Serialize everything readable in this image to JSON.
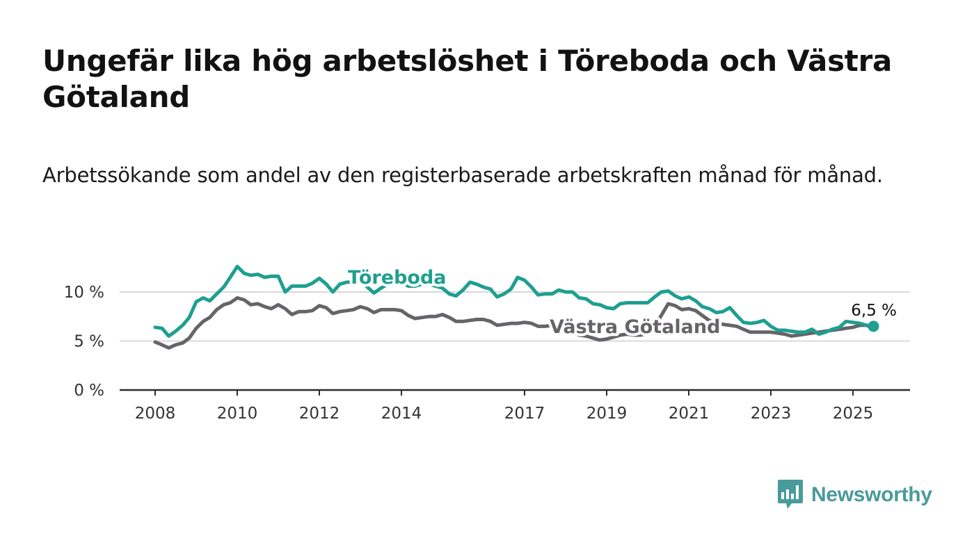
{
  "header": {
    "title": "Ungefär lika hög arbetslöshet i Töreboda och Västra Götaland",
    "subtitle": "Arbetssökande som andel av den registerbaserade arbetskraften månad för månad."
  },
  "brand": {
    "name": "Newsworthy",
    "color": "#4a9a9b",
    "icon": "bar-chart-speech-bubble-icon"
  },
  "chart_data": {
    "type": "line",
    "xlabel": "",
    "ylabel": "",
    "ylim": [
      0,
      13
    ],
    "xlim": [
      2008,
      2026.4
    ],
    "y_ticks": [
      {
        "value": 0,
        "label": "0 %"
      },
      {
        "value": 5,
        "label": "5 %"
      },
      {
        "value": 10,
        "label": "10 %"
      }
    ],
    "x_ticks": [
      {
        "value": 2008,
        "label": "2008"
      },
      {
        "value": 2010,
        "label": "2010"
      },
      {
        "value": 2012,
        "label": "2012"
      },
      {
        "value": 2014,
        "label": "2014"
      },
      {
        "value": 2017,
        "label": "2017"
      },
      {
        "value": 2019,
        "label": "2019"
      },
      {
        "value": 2021,
        "label": "2021"
      },
      {
        "value": 2023,
        "label": "2023"
      },
      {
        "value": 2025,
        "label": "2025"
      }
    ],
    "grid": true,
    "series": [
      {
        "name": "Västra Götaland",
        "color": "#666468",
        "x": [
          2008.0,
          2008.17,
          2008.33,
          2008.5,
          2008.67,
          2008.83,
          2009.0,
          2009.17,
          2009.33,
          2009.5,
          2009.67,
          2009.83,
          2010.0,
          2010.17,
          2010.33,
          2010.5,
          2010.67,
          2010.83,
          2011.0,
          2011.17,
          2011.33,
          2011.5,
          2011.67,
          2011.83,
          2012.0,
          2012.17,
          2012.33,
          2012.5,
          2012.67,
          2012.83,
          2013.0,
          2013.17,
          2013.33,
          2013.5,
          2013.67,
          2013.83,
          2014.0,
          2014.17,
          2014.33,
          2014.5,
          2014.67,
          2014.83,
          2015.0,
          2015.17,
          2015.33,
          2015.5,
          2015.67,
          2015.83,
          2016.0,
          2016.17,
          2016.33,
          2016.5,
          2016.67,
          2016.83,
          2017.0,
          2017.17,
          2017.33,
          2017.5,
          2017.67,
          2017.83,
          2018.0,
          2018.17,
          2018.33,
          2018.5,
          2018.67,
          2018.83,
          2019.0,
          2019.17,
          2019.33,
          2019.5,
          2019.67,
          2019.83,
          2020.0,
          2020.17,
          2020.33,
          2020.5,
          2020.67,
          2020.83,
          2021.0,
          2021.17,
          2021.33,
          2021.5,
          2021.67,
          2021.83,
          2022.0,
          2022.17,
          2022.33,
          2022.5,
          2022.67,
          2022.83,
          2023.0,
          2023.17,
          2023.33,
          2023.5,
          2023.67,
          2023.83,
          2024.0,
          2024.17,
          2024.33,
          2024.5,
          2024.67,
          2024.83,
          2025.0,
          2025.17,
          2025.33,
          2025.5
        ],
        "values": [
          4.9,
          4.6,
          4.3,
          4.6,
          4.8,
          5.3,
          6.3,
          7.0,
          7.4,
          8.2,
          8.7,
          8.9,
          9.4,
          9.2,
          8.7,
          8.8,
          8.5,
          8.3,
          8.7,
          8.3,
          7.7,
          8.0,
          8.0,
          8.1,
          8.6,
          8.4,
          7.8,
          8.0,
          8.1,
          8.2,
          8.5,
          8.3,
          7.9,
          8.2,
          8.2,
          8.2,
          8.1,
          7.6,
          7.3,
          7.4,
          7.5,
          7.5,
          7.7,
          7.4,
          7.0,
          7.0,
          7.1,
          7.2,
          7.2,
          7.0,
          6.6,
          6.7,
          6.8,
          6.8,
          6.9,
          6.8,
          6.5,
          6.5,
          6.6,
          6.4,
          6.2,
          6.0,
          5.6,
          5.5,
          5.3,
          5.1,
          5.2,
          5.4,
          5.6,
          5.7,
          5.6,
          5.6,
          5.8,
          6.5,
          7.6,
          8.8,
          8.6,
          8.2,
          8.3,
          8.1,
          7.6,
          7.1,
          6.8,
          6.7,
          6.6,
          6.5,
          6.2,
          5.9,
          5.9,
          5.9,
          5.9,
          5.8,
          5.7,
          5.5,
          5.6,
          5.7,
          5.8,
          5.9,
          6.0,
          6.1,
          6.2,
          6.3,
          6.4,
          6.6,
          6.6,
          6.3
        ]
      },
      {
        "name": "Töreboda",
        "color": "#1e9f8f",
        "x": [
          2008.0,
          2008.17,
          2008.33,
          2008.5,
          2008.67,
          2008.83,
          2009.0,
          2009.17,
          2009.33,
          2009.5,
          2009.67,
          2009.83,
          2010.0,
          2010.17,
          2010.33,
          2010.5,
          2010.67,
          2010.83,
          2011.0,
          2011.17,
          2011.33,
          2011.5,
          2011.67,
          2011.83,
          2012.0,
          2012.17,
          2012.33,
          2012.5,
          2012.67,
          2012.83,
          2013.0,
          2013.17,
          2013.33,
          2013.5,
          2013.67,
          2013.83,
          2014.0,
          2014.17,
          2014.33,
          2014.5,
          2014.67,
          2014.83,
          2015.0,
          2015.17,
          2015.33,
          2015.5,
          2015.67,
          2015.83,
          2016.0,
          2016.17,
          2016.33,
          2016.5,
          2016.67,
          2016.83,
          2017.0,
          2017.17,
          2017.33,
          2017.5,
          2017.67,
          2017.83,
          2018.0,
          2018.17,
          2018.33,
          2018.5,
          2018.67,
          2018.83,
          2019.0,
          2019.17,
          2019.33,
          2019.5,
          2019.67,
          2019.83,
          2020.0,
          2020.17,
          2020.33,
          2020.5,
          2020.67,
          2020.83,
          2021.0,
          2021.17,
          2021.33,
          2021.5,
          2021.67,
          2021.83,
          2022.0,
          2022.17,
          2022.33,
          2022.5,
          2022.67,
          2022.83,
          2023.0,
          2023.17,
          2023.33,
          2023.5,
          2023.67,
          2023.83,
          2024.0,
          2024.17,
          2024.33,
          2024.5,
          2024.67,
          2024.83,
          2025.0,
          2025.17,
          2025.33,
          2025.5
        ],
        "values": [
          6.4,
          6.3,
          5.5,
          6.0,
          6.6,
          7.4,
          9.0,
          9.4,
          9.1,
          9.8,
          10.5,
          11.5,
          12.6,
          11.9,
          11.7,
          11.8,
          11.5,
          11.6,
          11.6,
          10.0,
          10.6,
          10.6,
          10.6,
          10.9,
          11.4,
          10.8,
          10.0,
          10.8,
          11.0,
          11.0,
          11.2,
          10.5,
          9.9,
          10.4,
          10.8,
          10.8,
          11.0,
          10.6,
          10.6,
          10.8,
          10.8,
          10.6,
          10.4,
          9.8,
          9.6,
          10.2,
          11.0,
          10.8,
          10.5,
          10.3,
          9.5,
          9.8,
          10.3,
          11.5,
          11.2,
          10.5,
          9.7,
          9.8,
          9.8,
          10.2,
          10.0,
          10.0,
          9.4,
          9.3,
          8.8,
          8.7,
          8.4,
          8.3,
          8.8,
          8.9,
          8.9,
          8.9,
          8.9,
          9.5,
          10.0,
          10.1,
          9.6,
          9.3,
          9.5,
          9.1,
          8.5,
          8.3,
          7.9,
          8.0,
          8.4,
          7.6,
          6.9,
          6.8,
          6.9,
          7.1,
          6.5,
          6.1,
          6.1,
          6.0,
          5.9,
          5.9,
          6.2,
          5.7,
          5.9,
          6.2,
          6.4,
          7.0,
          6.9,
          6.8,
          6.6,
          6.5
        ]
      }
    ],
    "series_labels": [
      {
        "series": "Töreboda",
        "text": "Töreboda"
      },
      {
        "series": "Västra Götaland",
        "text": "Västra Götaland"
      }
    ],
    "annotation": {
      "series": "Töreboda",
      "text": "6,5 %"
    }
  }
}
